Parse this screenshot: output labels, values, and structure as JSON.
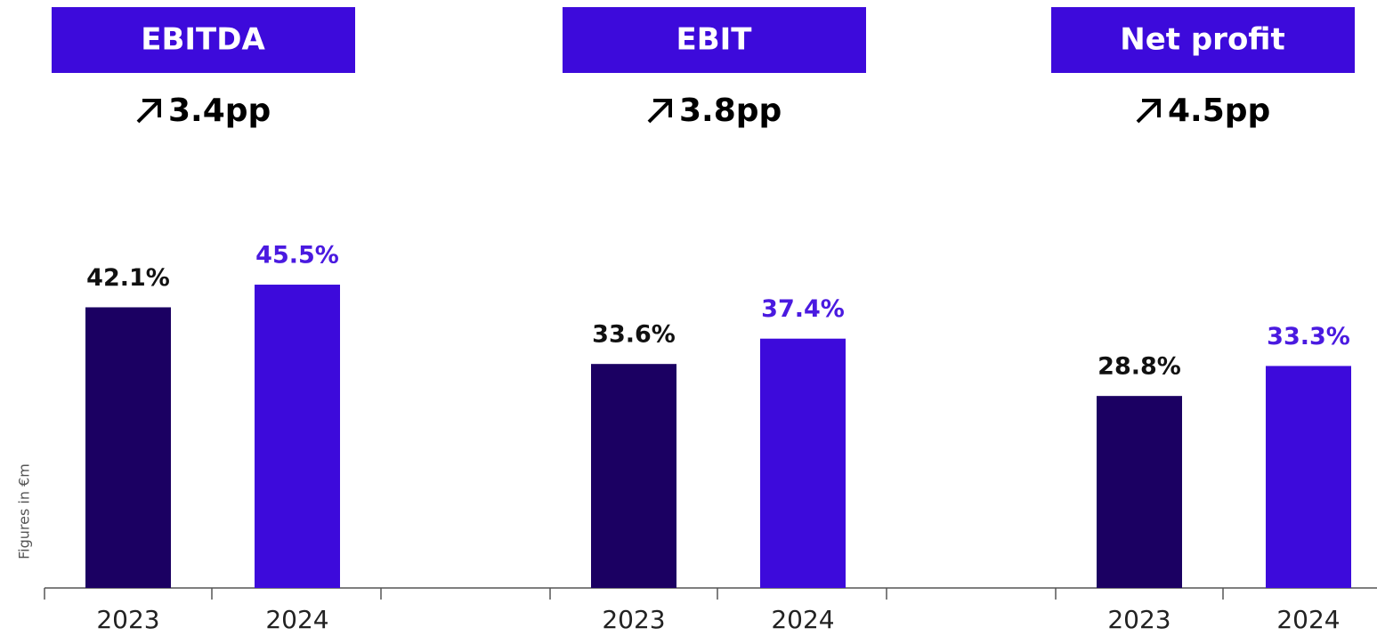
{
  "ylabel": "Figures in €m",
  "chart_data": [
    {
      "type": "bar",
      "title": "EBITDA",
      "annotation": "3.4pp",
      "categories": [
        "2023",
        "2024"
      ],
      "values": [
        42.1,
        45.5
      ],
      "value_labels": [
        "42.1%",
        "45.5%"
      ],
      "colors": [
        "#1b0062",
        "#3d0adb"
      ],
      "label_colors": [
        "#111111",
        "#4a1ae0"
      ]
    },
    {
      "type": "bar",
      "title": "EBIT",
      "annotation": "3.8pp",
      "categories": [
        "2023",
        "2024"
      ],
      "values": [
        33.6,
        37.4
      ],
      "value_labels": [
        "33.6%",
        "37.4%"
      ],
      "colors": [
        "#1b0062",
        "#3d0adb"
      ],
      "label_colors": [
        "#111111",
        "#4a1ae0"
      ]
    },
    {
      "type": "bar",
      "title": "Net profit",
      "annotation": "4.5pp",
      "categories": [
        "2023",
        "2024"
      ],
      "values": [
        28.8,
        33.3
      ],
      "value_labels": [
        "28.8%",
        "33.3%"
      ],
      "colors": [
        "#1b0062",
        "#3d0adb"
      ],
      "label_colors": [
        "#111111",
        "#4a1ae0"
      ]
    }
  ]
}
